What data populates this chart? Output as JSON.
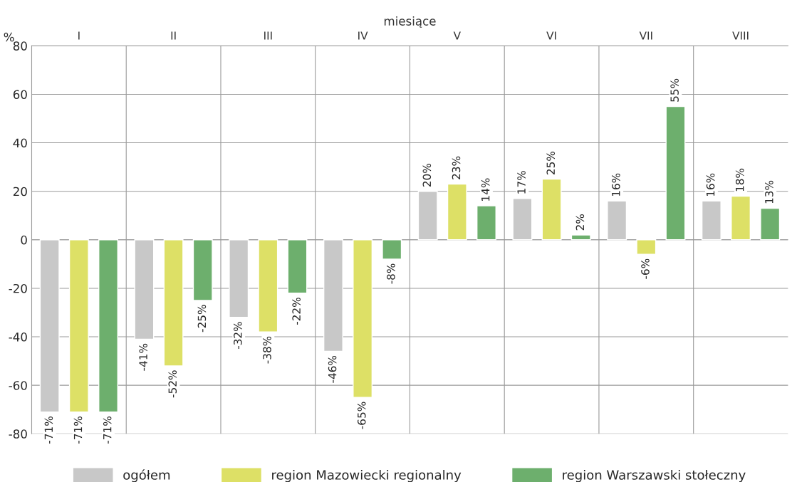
{
  "chart_data": {
    "type": "bar",
    "xlabel": "miesiące",
    "ylabel": "%",
    "categories": [
      "I",
      "II",
      "III",
      "IV",
      "V",
      "VI",
      "VII",
      "VIII"
    ],
    "series": [
      {
        "name": "ogółem",
        "color": "#c8c8c8",
        "values": [
          -71,
          -41,
          -32,
          -46,
          20,
          17,
          16,
          16
        ],
        "value_labels": [
          "-71%",
          "-41%",
          "-32%",
          "-46%",
          "20%",
          "17%",
          "16%",
          "16%"
        ]
      },
      {
        "name": "region Mazowiecki regionalny",
        "color": "#dde066",
        "values": [
          -71,
          -52,
          -38,
          -65,
          23,
          25,
          -6,
          18
        ],
        "value_labels": [
          "-71%",
          "-52%",
          "-38%",
          "-65%",
          "23%",
          "25%",
          "-6%",
          "18%"
        ]
      },
      {
        "name": "region Warszawski stołeczny",
        "color": "#6daf6d",
        "values": [
          -71,
          -25,
          -22,
          -8,
          14,
          2,
          55,
          13
        ],
        "value_labels": [
          "-71%",
          "-25%",
          "-22%",
          "-8%",
          "14%",
          "2%",
          "55%",
          "13%"
        ]
      }
    ],
    "ylim": [
      -80,
      80
    ],
    "yticks": [
      -80,
      -60,
      -40,
      -20,
      0,
      20,
      40,
      60,
      80
    ],
    "grid": true,
    "legend": "bottom"
  }
}
